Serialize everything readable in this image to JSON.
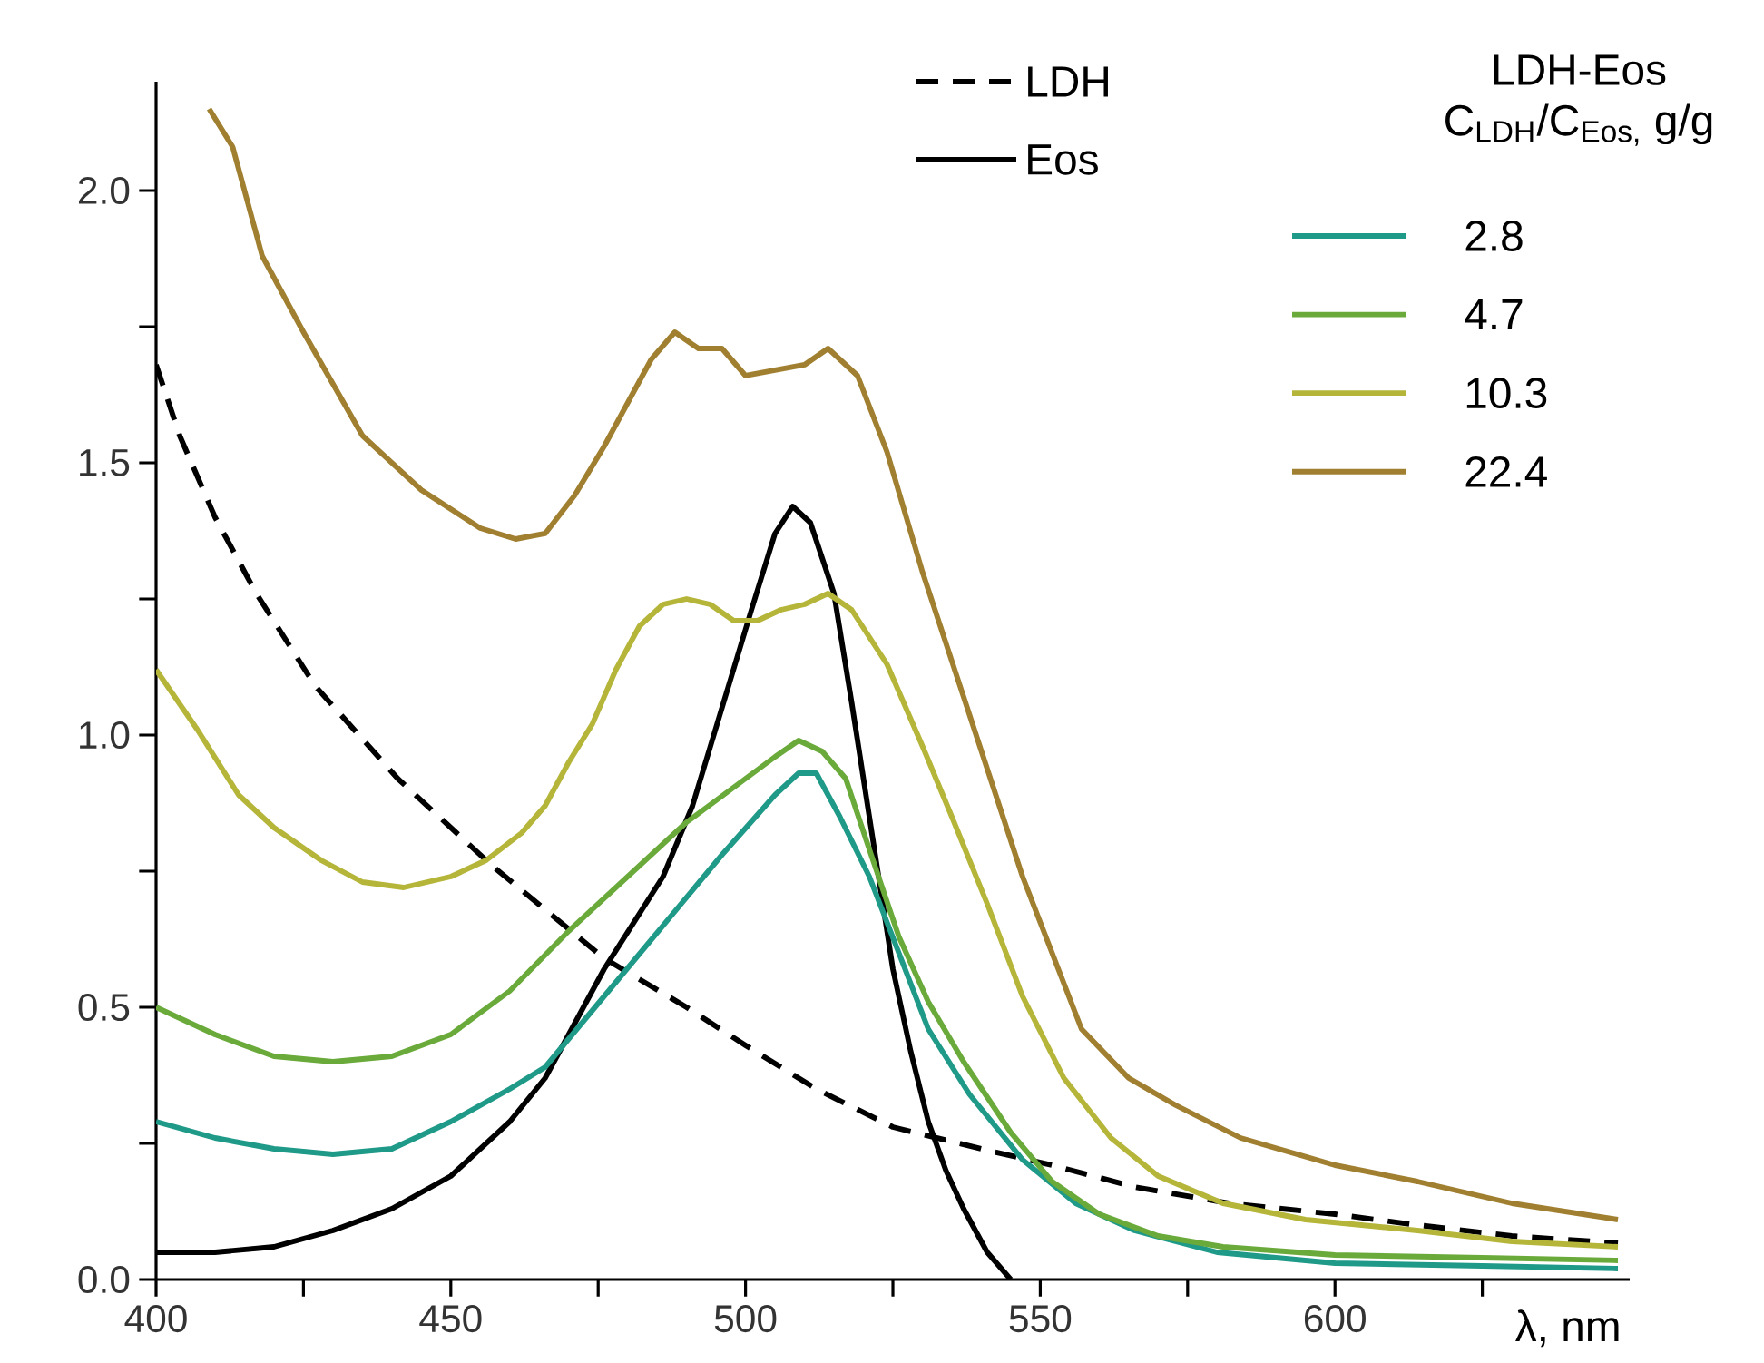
{
  "chart_data": {
    "type": "line",
    "xlabel": "λ, nm",
    "legend_title": "LDH-Eos C$_{LDH}$/C$_{Eos,}$ g/g",
    "legend": "top right",
    "xlim": [
      400,
      650
    ],
    "ylim": [
      0,
      2.2
    ],
    "xticks": [
      400,
      {
        "value": 425,
        "label": null
      },
      450,
      {
        "value": 475,
        "label": null
      },
      500,
      {
        "value": 525,
        "label": null
      },
      550,
      {
        "value": 575,
        "label": null
      },
      600,
      {
        "value": 625,
        "label": null
      }
    ],
    "yticks": [
      {
        "value": 0,
        "label": "0.0"
      },
      {
        "value": 0.25,
        "label": null
      },
      0.5,
      {
        "value": 0.75,
        "label": null
      },
      {
        "value": 1,
        "label": "1.0"
      },
      {
        "value": 1.25,
        "label": null
      },
      1.5,
      {
        "value": 1.75,
        "label": null
      },
      {
        "value": 2,
        "label": "2.0"
      }
    ],
    "series": [
      {
        "name": "LDH",
        "color": "#000000",
        "line_style": "dashed",
        "x": [
          400,
          404,
          410,
          417,
          427,
          441,
          457,
          476,
          490,
          500,
          512,
          525,
          540,
          552,
          566,
          582,
          600,
          614,
          630,
          648
        ],
        "values": [
          1.68,
          1.55,
          1.4,
          1.26,
          1.09,
          0.92,
          0.76,
          0.59,
          0.5,
          0.43,
          0.35,
          0.28,
          0.24,
          0.21,
          0.17,
          0.14,
          0.12,
          0.1,
          0.08,
          0.067
        ]
      },
      {
        "name": "Eos",
        "color": "#000000",
        "line_style": "solid",
        "x": [
          400,
          410,
          420,
          430,
          440,
          450,
          460,
          466,
          476,
          486,
          491,
          496,
          501,
          505,
          508,
          511,
          515,
          518,
          521,
          525,
          528,
          531,
          534,
          537,
          541,
          545
        ],
        "values": [
          0.05,
          0.05,
          0.06,
          0.09,
          0.13,
          0.19,
          0.29,
          0.37,
          0.57,
          0.74,
          0.87,
          1.05,
          1.23,
          1.37,
          1.42,
          1.39,
          1.26,
          1.06,
          0.85,
          0.57,
          0.42,
          0.29,
          0.2,
          0.13,
          0.05,
          0.0
        ]
      },
      {
        "name": "2.8",
        "color": "#1f9a88",
        "line_style": "solid",
        "x": [
          400,
          410,
          420,
          430,
          440,
          450,
          460,
          466,
          476,
          486,
          496,
          505,
          509,
          512,
          516,
          521,
          526,
          531,
          538,
          547,
          556,
          566,
          580,
          600,
          625,
          648
        ],
        "values": [
          0.29,
          0.26,
          0.24,
          0.23,
          0.24,
          0.29,
          0.35,
          0.39,
          0.52,
          0.65,
          0.78,
          0.89,
          0.93,
          0.93,
          0.85,
          0.74,
          0.6,
          0.46,
          0.34,
          0.22,
          0.14,
          0.09,
          0.05,
          0.03,
          0.025,
          0.02
        ]
      },
      {
        "name": "4.7",
        "color": "#6aaa3a",
        "line_style": "solid",
        "x": [
          400,
          410,
          420,
          430,
          440,
          450,
          460,
          470,
          480,
          490,
          500,
          505,
          509,
          513,
          517,
          521,
          526,
          531,
          537,
          545,
          552,
          560,
          570,
          581,
          600,
          625,
          648
        ],
        "values": [
          0.5,
          0.45,
          0.41,
          0.4,
          0.41,
          0.45,
          0.53,
          0.64,
          0.74,
          0.84,
          0.92,
          0.96,
          0.99,
          0.97,
          0.92,
          0.79,
          0.63,
          0.51,
          0.4,
          0.27,
          0.18,
          0.12,
          0.08,
          0.06,
          0.045,
          0.04,
          0.035
        ]
      },
      {
        "name": "10.3",
        "color": "#b5b53a",
        "line_style": "solid",
        "x": [
          400,
          407,
          414,
          420,
          428,
          435,
          442,
          450,
          456,
          462,
          466,
          470,
          474,
          478,
          482,
          486,
          490,
          494,
          498,
          502,
          506,
          510,
          514,
          518,
          524,
          530,
          535,
          541,
          547,
          554,
          562,
          570,
          581,
          595,
          614,
          630,
          648
        ],
        "values": [
          1.12,
          1.01,
          0.89,
          0.83,
          0.77,
          0.73,
          0.72,
          0.74,
          0.77,
          0.82,
          0.87,
          0.95,
          1.02,
          1.12,
          1.2,
          1.24,
          1.25,
          1.24,
          1.21,
          1.21,
          1.23,
          1.24,
          1.26,
          1.23,
          1.13,
          0.98,
          0.85,
          0.69,
          0.52,
          0.37,
          0.26,
          0.19,
          0.14,
          0.11,
          0.09,
          0.07,
          0.06
        ]
      },
      {
        "name": "22.4",
        "color": "#a08030",
        "line_style": "solid",
        "x": [
          409,
          413,
          418,
          425,
          435,
          445,
          455,
          461,
          466,
          471,
          476,
          484,
          488,
          492,
          496,
          500,
          505,
          510,
          514,
          519,
          524,
          530,
          537,
          547,
          557,
          565,
          573,
          584,
          600,
          614,
          630,
          648
        ],
        "values": [
          2.15,
          2.08,
          1.88,
          1.74,
          1.55,
          1.45,
          1.38,
          1.36,
          1.37,
          1.44,
          1.53,
          1.69,
          1.74,
          1.71,
          1.71,
          1.66,
          1.67,
          1.68,
          1.71,
          1.66,
          1.52,
          1.3,
          1.07,
          0.74,
          0.46,
          0.37,
          0.32,
          0.26,
          0.21,
          0.18,
          0.14,
          0.11
        ]
      }
    ]
  }
}
